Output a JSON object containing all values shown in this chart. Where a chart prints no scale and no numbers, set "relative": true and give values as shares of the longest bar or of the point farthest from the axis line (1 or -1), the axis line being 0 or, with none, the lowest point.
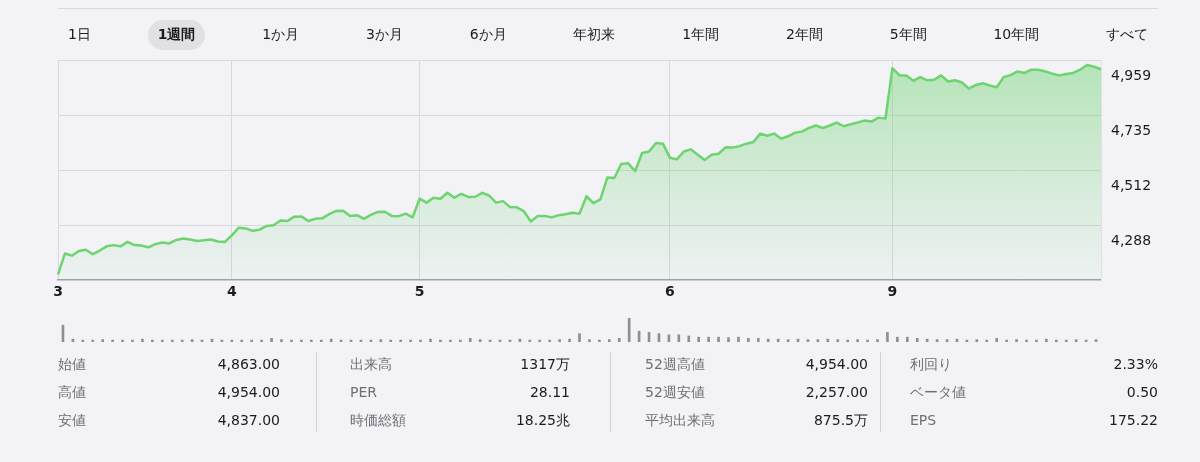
{
  "chart_data": [
    {
      "type": "other",
      "annotations": [
        "1日",
        "1週間",
        "1か月",
        "3か月",
        "6か月",
        "年初来",
        "1年間",
        "2年間",
        "5年間",
        "10年間",
        "すべて"
      ]
    },
    {
      "type": "area",
      "grid": true,
      "categories": [
        "3",
        null,
        null,
        null,
        null,
        null,
        null,
        null,
        null,
        null,
        null,
        null,
        null,
        null,
        null,
        null,
        null,
        null,
        null,
        null,
        null,
        null,
        null,
        null,
        null,
        "4",
        null,
        null,
        null,
        null,
        null,
        null,
        null,
        null,
        null,
        null,
        null,
        null,
        null,
        null,
        null,
        null,
        null,
        null,
        null,
        null,
        null,
        null,
        null,
        null,
        null,
        null,
        "5",
        null,
        null,
        null,
        null,
        null,
        null,
        null,
        null,
        null,
        null,
        null,
        null,
        null,
        null,
        null,
        null,
        null,
        null,
        null,
        null,
        null,
        null,
        null,
        null,
        null,
        null,
        null,
        null,
        null,
        null,
        null,
        null,
        null,
        null,
        null,
        "6",
        null,
        null,
        null,
        null,
        null,
        null,
        null,
        null,
        null,
        null,
        null,
        null,
        null,
        null,
        null,
        null,
        null,
        null,
        null,
        null,
        null,
        null,
        null,
        null,
        null,
        null,
        null,
        null,
        null,
        null,
        null,
        "9",
        null,
        null,
        null,
        null,
        null,
        null,
        null,
        null,
        null,
        null,
        null,
        null,
        null,
        null,
        null,
        null,
        null,
        null,
        null,
        null,
        null,
        null,
        null,
        null,
        null,
        null,
        null,
        null,
        null,
        null
      ],
      "ylim": [
        4065,
        4959
      ],
      "yticks": [
        {
          "value": 4288,
          "label": "4,288"
        },
        {
          "value": 4512,
          "label": "4,512"
        },
        {
          "value": 4735,
          "label": "4,735"
        },
        {
          "value": 4959,
          "label": "4,959"
        }
      ],
      "series": [
        {
          "color": "#6dd46f",
          "values": [
            4087,
            4173,
            4164,
            4183,
            4188,
            4170,
            4185,
            4202,
            4207,
            4202,
            4220,
            4207,
            4205,
            4198,
            4211,
            4218,
            4214,
            4228,
            4234,
            4230,
            4224,
            4227,
            4230,
            4222,
            4220,
            4247,
            4278,
            4275,
            4265,
            4270,
            4285,
            4288,
            4307,
            4305,
            4323,
            4324,
            4305,
            4314,
            4316,
            4333,
            4346,
            4347,
            4326,
            4329,
            4314,
            4330,
            4342,
            4343,
            4326,
            4325,
            4335,
            4320,
            4396,
            4380,
            4400,
            4396,
            4420,
            4400,
            4416,
            4403,
            4404,
            4420,
            4409,
            4380,
            4386,
            4362,
            4361,
            4345,
            4303,
            4326,
            4326,
            4320,
            4329,
            4333,
            4339,
            4335,
            4406,
            4378,
            4393,
            4482,
            4480,
            4537,
            4540,
            4508,
            4582,
            4588,
            4623,
            4620,
            4563,
            4556,
            4588,
            4597,
            4575,
            4554,
            4575,
            4579,
            4605,
            4604,
            4610,
            4620,
            4627,
            4661,
            4652,
            4661,
            4640,
            4650,
            4665,
            4669,
            4684,
            4694,
            4684,
            4694,
            4706,
            4691,
            4699,
            4706,
            4714,
            4710,
            4726,
            4722,
            4927,
            4899,
            4898,
            4876,
            4891,
            4878,
            4880,
            4898,
            4873,
            4878,
            4869,
            4844,
            4859,
            4866,
            4857,
            4850,
            4891,
            4899,
            4914,
            4908,
            4921,
            4921,
            4914,
            4905,
            4898,
            4904,
            4908,
            4921,
            4940,
            4933,
            4923
          ]
        }
      ]
    },
    {
      "type": "bar",
      "relative": true,
      "color": "#8e8e93",
      "categories": [
        null,
        null,
        null,
        null,
        null,
        null,
        null,
        null,
        null,
        null,
        null,
        null,
        null,
        null,
        null,
        null,
        null,
        null,
        null,
        null,
        null,
        null,
        null,
        null,
        null,
        null,
        null,
        null,
        null,
        null,
        null,
        null,
        null,
        null,
        null,
        null,
        null,
        null,
        null,
        null,
        null,
        null,
        null,
        null,
        null,
        null,
        null,
        null,
        null,
        null,
        null,
        null,
        null,
        null,
        null,
        null,
        null,
        null,
        null,
        null,
        null,
        null,
        null,
        null,
        null,
        null,
        null,
        null,
        null,
        null,
        null,
        null,
        null,
        null,
        null,
        null,
        null,
        null,
        null,
        null,
        null,
        null,
        null,
        null,
        null,
        null,
        null,
        null,
        null,
        null,
        null,
        null,
        null,
        null,
        null,
        null,
        null,
        null,
        null,
        null,
        null,
        null,
        null,
        null,
        null
      ],
      "values": [
        0.7,
        0.12,
        0.08,
        0.08,
        0.1,
        0.08,
        0.08,
        0.08,
        0.12,
        0.08,
        0.08,
        0.08,
        0.08,
        0.1,
        0.08,
        0.12,
        0.08,
        0.08,
        0.08,
        0.08,
        0.08,
        0.15,
        0.1,
        0.08,
        0.08,
        0.08,
        0.08,
        0.12,
        0.08,
        0.08,
        0.08,
        0.08,
        0.1,
        0.08,
        0.08,
        0.08,
        0.08,
        0.12,
        0.08,
        0.08,
        0.08,
        0.15,
        0.1,
        0.08,
        0.08,
        0.08,
        0.12,
        0.08,
        0.08,
        0.08,
        0.1,
        0.12,
        0.35,
        0.1,
        0.08,
        0.1,
        0.15,
        1.0,
        0.45,
        0.4,
        0.35,
        0.3,
        0.3,
        0.25,
        0.2,
        0.2,
        0.2,
        0.18,
        0.2,
        0.15,
        0.15,
        0.12,
        0.12,
        0.1,
        0.12,
        0.1,
        0.1,
        0.12,
        0.1,
        0.08,
        0.1,
        0.08,
        0.1,
        0.4,
        0.2,
        0.2,
        0.15,
        0.12,
        0.1,
        0.1,
        0.12,
        0.08,
        0.1,
        0.08,
        0.15,
        0.08,
        0.1,
        0.08,
        0.08,
        0.12,
        0.08,
        0.08,
        0.1,
        0.08,
        0.1
      ]
    },
    {
      "type": "other",
      "annotations": [
        "始値",
        "4,863.00",
        "高値",
        "4,954.00",
        "安値",
        "4,837.00",
        "出来高",
        "1317万",
        "PER",
        "28.11",
        "時価総額",
        "18.25兆",
        "52週高値",
        "4,954.00",
        "52週安値",
        "2,257.00",
        "平均出来高",
        "875.5万",
        "利回り",
        "2.33%",
        "ベータ値",
        "0.50",
        "EPS",
        "175.22"
      ]
    }
  ]
}
